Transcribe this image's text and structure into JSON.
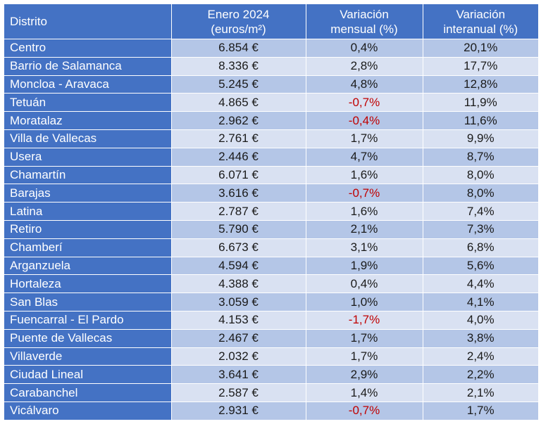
{
  "table": {
    "headers": {
      "district": "Distrito",
      "price_line1": "Enero 2024",
      "price_line2": "(euros/m²)",
      "monthly_line1": "Variación",
      "monthly_line2": "mensual (%)",
      "annual_line1": "Variación",
      "annual_line2": "interanual (%)"
    },
    "negative_color": "#c00000",
    "header_color": "#4472c4",
    "rows": [
      {
        "district": "Centro",
        "price": "6.854 €",
        "monthly": "0,4%",
        "annual": "20,1%"
      },
      {
        "district": "Barrio de Salamanca",
        "price": "8.336 €",
        "monthly": "2,8%",
        "annual": "17,7%"
      },
      {
        "district": "Moncloa - Aravaca",
        "price": "5.245 €",
        "monthly": "4,8%",
        "annual": "12,8%"
      },
      {
        "district": "Tetuán",
        "price": "4.865 €",
        "monthly": "-0,7%",
        "annual": "11,9%"
      },
      {
        "district": "Moratalaz",
        "price": "2.962 €",
        "monthly": "-0,4%",
        "annual": "11,6%"
      },
      {
        "district": "Villa de Vallecas",
        "price": "2.761 €",
        "monthly": "1,7%",
        "annual": "9,9%"
      },
      {
        "district": "Usera",
        "price": "2.446 €",
        "monthly": "4,7%",
        "annual": "8,7%"
      },
      {
        "district": "Chamartín",
        "price": "6.071 €",
        "monthly": "1,6%",
        "annual": "8,0%"
      },
      {
        "district": "Barajas",
        "price": "3.616 €",
        "monthly": "-0,7%",
        "annual": "8,0%"
      },
      {
        "district": "Latina",
        "price": "2.787 €",
        "monthly": "1,6%",
        "annual": "7,4%"
      },
      {
        "district": "Retiro",
        "price": "5.790 €",
        "monthly": "2,1%",
        "annual": "7,3%"
      },
      {
        "district": "Chamberí",
        "price": "6.673 €",
        "monthly": "3,1%",
        "annual": "6,8%"
      },
      {
        "district": "Arganzuela",
        "price": "4.594 €",
        "monthly": "1,9%",
        "annual": "5,6%"
      },
      {
        "district": "Hortaleza",
        "price": "4.388 €",
        "monthly": "0,4%",
        "annual": "4,4%"
      },
      {
        "district": "San Blas",
        "price": "3.059 €",
        "monthly": "1,0%",
        "annual": "4,1%"
      },
      {
        "district": "Fuencarral - El Pardo",
        "price": "4.153 €",
        "monthly": "-1,7%",
        "annual": "4,0%"
      },
      {
        "district": "Puente de Vallecas",
        "price": "2.467 €",
        "monthly": "1,7%",
        "annual": "3,8%"
      },
      {
        "district": "Villaverde",
        "price": "2.032 €",
        "monthly": "1,7%",
        "annual": "2,4%"
      },
      {
        "district": "Ciudad Lineal",
        "price": "3.641 €",
        "monthly": "2,9%",
        "annual": "2,2%"
      },
      {
        "district": "Carabanchel",
        "price": "2.587 €",
        "monthly": "1,4%",
        "annual": "2,1%"
      },
      {
        "district": "Vicálvaro",
        "price": "2.931 €",
        "monthly": "-0,7%",
        "annual": "1,7%"
      }
    ]
  }
}
